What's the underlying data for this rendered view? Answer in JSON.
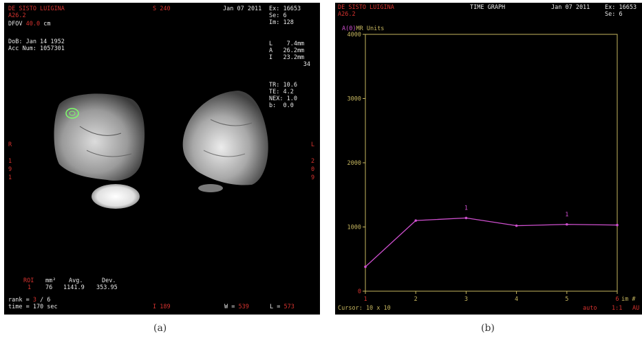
{
  "panel_a": {
    "patient": "DE SISTO LUIGINA",
    "exam_code": "A26.2",
    "dfov_label": "DFOV",
    "dfov_value": "40.0",
    "dfov_unit": "cm",
    "series_pos": "S 240",
    "date": "Jan 07 2011",
    "ex": "Ex: 16653",
    "se": "Se: 6",
    "im": "Im: 128",
    "dob": "DoB: Jan 14 1952",
    "acc": "Acc Num: 1057301",
    "l": "L    7.4mm",
    "a": "A   26.2mm",
    "i": "I   23.2mm",
    "num34": "34",
    "tr": "TR: 10.6",
    "te": "TE: 4.2",
    "nex": "NEX: 1.0",
    "b": "b:  0.0",
    "left_letters": [
      "R",
      "",
      "1",
      "9",
      "1"
    ],
    "right_letters": [
      "L",
      "",
      "2",
      "0",
      "9"
    ],
    "roi_header": [
      "ROI",
      "mm²",
      "Avg.",
      "Dev."
    ],
    "roi_values": [
      "1",
      "76",
      "1141.9",
      "353.95"
    ],
    "rank_label": "rank = ",
    "rank_value": "3",
    "rank_total": " / 6",
    "time": "time = 170 sec",
    "bottom_i": "I 189",
    "w_label": "W = ",
    "w_value": "539",
    "l_label": "L = ",
    "l_value": "573"
  },
  "panel_b": {
    "patient": "DE SISTO LUIGINA",
    "exam_code": "A26.2",
    "title": "TIME GRAPH",
    "date": "Jan 07 2011",
    "ex": "Ex: 16653",
    "se": "Se: 6",
    "unit_label": "A(0)",
    "ylabel": "MR Units",
    "cursor": "Cursor: 10 x 10",
    "auto": "auto",
    "ratio": "1:1",
    "corner": "AU",
    "x_axis_suffix": "im #"
  },
  "captions": {
    "a": "(a)",
    "b": "(b)"
  },
  "colors": {
    "trace": "#d050d0",
    "axis": "#c8b860",
    "red_text": "#d8332f",
    "roi": "#7dff6a"
  },
  "chart_data": {
    "type": "line",
    "title": "TIME GRAPH",
    "xlabel": "im #",
    "ylabel": "MR Units",
    "x": [
      1,
      2,
      3,
      4,
      5,
      6
    ],
    "x_ticks": [
      "1",
      "2",
      "3",
      "4",
      "5",
      "6"
    ],
    "y_ticks": [
      "0",
      "1000",
      "2000",
      "3000",
      "4000"
    ],
    "xlim": [
      1,
      6
    ],
    "ylim": [
      0,
      4000
    ],
    "series": [
      {
        "values": [
          380,
          1100,
          1140,
          1020,
          1040,
          1030
        ]
      }
    ],
    "markers": [
      {
        "x": 3,
        "label": "1"
      },
      {
        "x": 5,
        "label": "1"
      }
    ]
  }
}
